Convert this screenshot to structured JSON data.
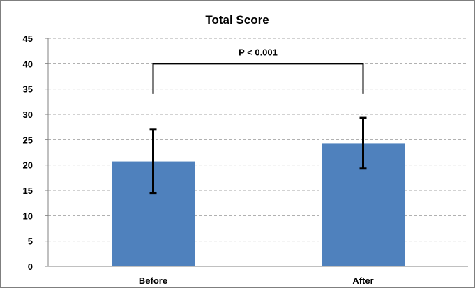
{
  "chart_data": {
    "type": "bar",
    "title": "Total Score",
    "categories": [
      "Before",
      "After"
    ],
    "values": [
      20.7,
      24.3
    ],
    "error_bars": [
      {
        "low": 14.5,
        "high": 27.0
      },
      {
        "low": 19.3,
        "high": 29.3
      }
    ],
    "xlabel": "",
    "ylabel": "",
    "ylim": [
      0,
      45
    ],
    "yticks": [
      0,
      5,
      10,
      15,
      20,
      25,
      30,
      35,
      40,
      45
    ],
    "grid": true,
    "bar_color": "#4f81bd",
    "annotation": {
      "text": "P < 0.001",
      "between": [
        "Before",
        "After"
      ],
      "y": 40,
      "drop_to": 34
    }
  }
}
